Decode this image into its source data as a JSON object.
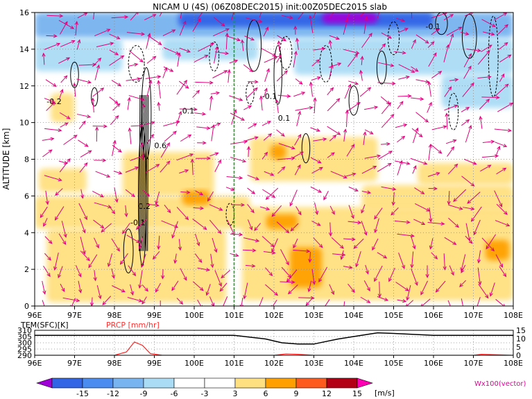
{
  "title": "NICAM U (4S) (06Z08DEC2015) init:00Z05DEC2015 slab",
  "chart_data": [
    {
      "type": "heatmap",
      "title": "NICAM U (4S) (06Z08DEC2015) init:00Z05DEC2015 slab",
      "xlabel": "",
      "ylabel": "ALTITUDE [km]",
      "x_ticks": [
        "96E",
        "97E",
        "98E",
        "99E",
        "100E",
        "101E",
        "102E",
        "103E",
        "104E",
        "105E",
        "106E",
        "107E",
        "108E"
      ],
      "xlim": [
        96,
        108
      ],
      "y_ticks": [
        "0",
        "2",
        "4",
        "6",
        "8",
        "10",
        "12",
        "14",
        "16"
      ],
      "ylim": [
        0,
        16
      ],
      "grid": true,
      "colorbar": {
        "ticks": [
          "-15",
          "-12",
          "-9",
          "-6",
          "-3",
          "3",
          "6",
          "9",
          "12",
          "15"
        ],
        "unit": "[m/s]",
        "colors": [
          "#a000d8",
          "#3264e6",
          "#4b8cf0",
          "#78b4f0",
          "#aadcf5",
          "#ffffff",
          "#ffe080",
          "#ffa000",
          "#ff5a1e",
          "#e61e1e",
          "#b40014",
          "#ff00b4"
        ]
      },
      "vector_label": "Wx100(vector)",
      "contour_labels": [
        "-0.1",
        "0.1",
        "-0.2",
        "0.2",
        "0.6",
        "-0.1",
        "0.1",
        "-0.1"
      ],
      "vertical_marker_lon": 101.0,
      "blue_regions": [
        {
          "x0": 96.0,
          "x1": 108.0,
          "y0": 14.6,
          "y1": 16.0,
          "level": -6
        },
        {
          "x0": 96.0,
          "x1": 98.2,
          "y0": 12.8,
          "y1": 14.6,
          "level": -3
        },
        {
          "x0": 99.2,
          "x1": 101.6,
          "y0": 13.4,
          "y1": 14.6,
          "level": -3
        },
        {
          "x0": 102.5,
          "x1": 108.0,
          "y0": 12.6,
          "y1": 14.6,
          "level": -3
        },
        {
          "x0": 106.2,
          "x1": 108.0,
          "y0": 10.8,
          "y1": 12.6,
          "level": -3
        },
        {
          "x0": 99.6,
          "x1": 106.0,
          "y0": 15.2,
          "y1": 16.0,
          "level": -12
        },
        {
          "x0": 103.2,
          "x1": 104.6,
          "y0": 15.4,
          "y1": 16.0,
          "level": -15
        }
      ],
      "yellow_regions": [
        {
          "x0": 96.1,
          "x1": 97.3,
          "y0": 6.2,
          "y1": 7.5,
          "level": 3
        },
        {
          "x0": 96.0,
          "x1": 101.4,
          "y0": 4.2,
          "y1": 6.0,
          "level": 3
        },
        {
          "x0": 96.3,
          "x1": 100.8,
          "y0": 0.2,
          "y1": 4.2,
          "level": 3
        },
        {
          "x0": 98.2,
          "x1": 100.5,
          "y0": 6.0,
          "y1": 8.4,
          "level": 3
        },
        {
          "x0": 101.4,
          "x1": 104.6,
          "y0": 6.8,
          "y1": 9.2,
          "level": 3
        },
        {
          "x0": 101.2,
          "x1": 108.0,
          "y0": 0.3,
          "y1": 5.4,
          "level": 3
        },
        {
          "x0": 104.2,
          "x1": 108.0,
          "y0": 5.2,
          "y1": 6.6,
          "level": 3
        },
        {
          "x0": 105.6,
          "x1": 108.0,
          "y0": 6.6,
          "y1": 7.8,
          "level": 3
        },
        {
          "x0": 96.4,
          "x1": 97.0,
          "y0": 10.0,
          "y1": 11.6,
          "level": 3
        }
      ],
      "orange_regions": [
        {
          "x0": 102.4,
          "x1": 103.2,
          "y0": 1.0,
          "y1": 3.2,
          "level": 6
        },
        {
          "x0": 101.8,
          "x1": 102.6,
          "y0": 4.2,
          "y1": 5.0,
          "level": 6
        },
        {
          "x0": 101.9,
          "x1": 102.3,
          "y0": 8.0,
          "y1": 8.8,
          "level": 6
        },
        {
          "x0": 107.3,
          "x1": 107.9,
          "y0": 2.5,
          "y1": 3.6,
          "level": 6
        },
        {
          "x0": 99.7,
          "x1": 100.4,
          "y0": 5.5,
          "y1": 6.3,
          "level": 6
        }
      ]
    },
    {
      "type": "line",
      "title": "",
      "xlim": [
        96,
        108
      ],
      "x_ticks": [
        "96E",
        "97E",
        "98E",
        "99E",
        "100E",
        "101E",
        "102E",
        "103E",
        "104E",
        "105E",
        "106E",
        "107E",
        "108E"
      ],
      "left_axis_label": "TEM(SFC)[K]",
      "left_ticks": [
        "290",
        "295",
        "300",
        "305",
        "310"
      ],
      "left_ylim": [
        290,
        310
      ],
      "right_axis_label": "PRCP [mm/hr]",
      "right_ticks": [
        "0",
        "5",
        "10",
        "15"
      ],
      "right_ylim": [
        0,
        15
      ],
      "series": [
        {
          "name": "TEM(SFC)[K]",
          "color": "#000000",
          "x": [
            96,
            97,
            98,
            99,
            100,
            101,
            101.8,
            102.2,
            102.6,
            103.0,
            103.3,
            103.6,
            104.0,
            104.4,
            104.6,
            105,
            106,
            107,
            108
          ],
          "y": [
            306,
            306,
            306,
            306,
            306,
            306,
            303,
            300,
            299,
            299,
            301,
            303,
            305,
            307,
            308,
            307.5,
            306,
            306,
            306
          ]
        },
        {
          "name": "PRCP [mm/hr]",
          "color": "#ff2020",
          "x": [
            96,
            98.0,
            98.3,
            98.5,
            98.7,
            98.9,
            99.2,
            101,
            102,
            102.3,
            102.6,
            103,
            104,
            106,
            107.0,
            107.2,
            107.5,
            108
          ],
          "y": [
            0,
            0,
            2,
            8,
            6,
            1,
            0,
            0,
            0,
            0.8,
            0.6,
            0,
            0,
            0,
            0,
            0.6,
            0.4,
            0
          ]
        }
      ]
    }
  ]
}
